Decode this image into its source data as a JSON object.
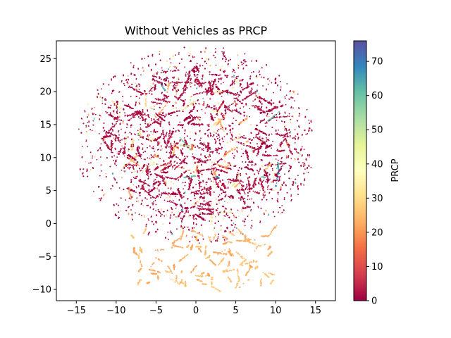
{
  "chart_data": {
    "type": "scatter",
    "title": "Without Vehicles as PRCP",
    "xlabel": "",
    "ylabel": "",
    "xlim": [
      -17.5,
      17.5
    ],
    "ylim": [
      -11.7,
      27.7
    ],
    "xticks": [
      -15,
      -10,
      -5,
      0,
      5,
      10,
      15
    ],
    "yticks": [
      -10,
      -5,
      0,
      5,
      10,
      15,
      20,
      25
    ],
    "grid": false,
    "colorbar": {
      "label": "PRCP",
      "colormap": "Spectral",
      "range": [
        0,
        76
      ],
      "ticks": [
        0,
        10,
        20,
        30,
        40,
        50,
        60,
        70
      ],
      "colors": [
        "#9e0142",
        "#d53e4f",
        "#f46d43",
        "#fdae61",
        "#fee08b",
        "#ffffbf",
        "#e6f598",
        "#abdda4",
        "#66c2a5",
        "#3288bd",
        "#5e4fa2"
      ]
    },
    "clusters": [
      {
        "region": "main-disc",
        "center": [
          0,
          12
        ],
        "radius": 15,
        "prcp_typical": 0
      },
      {
        "region": "lower-band",
        "x_range": [
          -8,
          10
        ],
        "y_range": [
          -10,
          -1
        ],
        "prcp_typical": 24
      }
    ]
  }
}
